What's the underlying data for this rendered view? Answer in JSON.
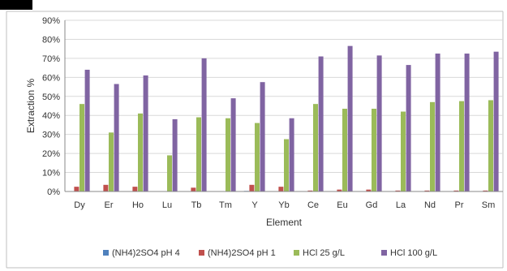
{
  "chart_data": {
    "type": "bar",
    "title": "",
    "xlabel": "Element",
    "ylabel": "Extraction %",
    "ylim": [
      0,
      0.9
    ],
    "ytick_values": [
      0,
      0.1,
      0.2,
      0.3,
      0.4,
      0.5,
      0.6,
      0.7,
      0.8,
      0.9
    ],
    "ytick_labels": [
      "0%",
      "10%",
      "20%",
      "30%",
      "40%",
      "50%",
      "60%",
      "70%",
      "80%",
      "90%"
    ],
    "grid": "horizontal",
    "legend_position": "bottom",
    "categories": [
      "Dy",
      "Er",
      "Ho",
      "Lu",
      "Tb",
      "Tm",
      "Y",
      "Yb",
      "Ce",
      "Eu",
      "Gd",
      "La",
      "Nd",
      "Pr",
      "Sm"
    ],
    "series": [
      {
        "name": "(NH4)2SO4 pH 4",
        "color": "#4F81BD",
        "values": [
          0.002,
          0.002,
          0.002,
          0.001,
          0.002,
          0.001,
          0.003,
          0.002,
          0.001,
          0.002,
          0.002,
          0.001,
          0.001,
          0.001,
          0.001
        ]
      },
      {
        "name": "(NH4)2SO4 pH 1",
        "color": "#C0504D",
        "values": [
          0.025,
          0.035,
          0.025,
          0.0,
          0.02,
          0.0,
          0.035,
          0.025,
          0.005,
          0.01,
          0.01,
          0.005,
          0.005,
          0.005,
          0.005
        ]
      },
      {
        "name": "HCl 25 g/L",
        "color": "#9BBB59",
        "values": [
          0.46,
          0.31,
          0.41,
          0.19,
          0.39,
          0.385,
          0.36,
          0.275,
          0.46,
          0.435,
          0.435,
          0.42,
          0.47,
          0.475,
          0.48
        ]
      },
      {
        "name": "HCl 100 g/L",
        "color": "#8064A2",
        "values": [
          0.64,
          0.565,
          0.61,
          0.38,
          0.7,
          0.49,
          0.575,
          0.385,
          0.71,
          0.765,
          0.715,
          0.665,
          0.725,
          0.725,
          0.735
        ]
      }
    ]
  }
}
